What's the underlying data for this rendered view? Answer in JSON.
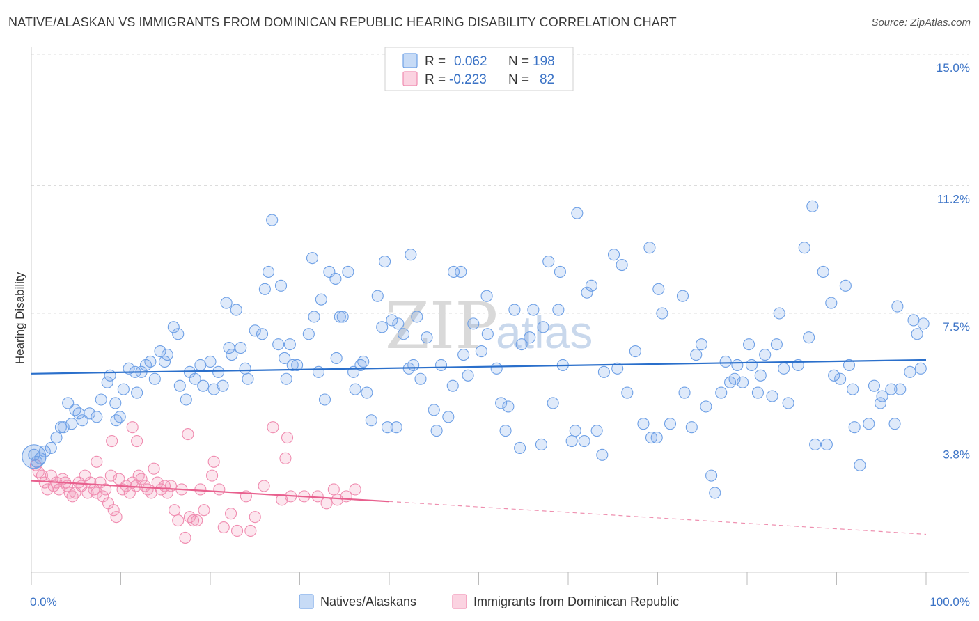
{
  "title": "NATIVE/ALASKAN VS IMMIGRANTS FROM DOMINICAN REPUBLIC HEARING DISABILITY CORRELATION CHART",
  "source": "Source: ZipAtlas.com",
  "watermark": {
    "zip": "ZIP",
    "atlas": "atlas"
  },
  "legend_top": {
    "rows": [
      {
        "r_label": "R =",
        "r_value": "0.062",
        "n_label": "N =",
        "n_value": "198",
        "color": "#6ea0e6"
      },
      {
        "r_label": "R =",
        "r_value": "-0.223",
        "n_label": "N =",
        "n_value": "82",
        "color": "#f08cb0"
      }
    ]
  },
  "chart_data": {
    "type": "scatter",
    "title": "NATIVE/ALASKAN VS IMMIGRANTS FROM DOMINICAN REPUBLIC HEARING DISABILITY CORRELATION CHART",
    "xlabel": "",
    "ylabel": "Hearing Disability",
    "xlim": [
      0,
      100
    ],
    "ylim": [
      0,
      15.0
    ],
    "x_tick_labels": [
      "0.0%",
      "100.0%"
    ],
    "y_ticks": [
      3.8,
      7.5,
      11.2,
      15.0
    ],
    "y_tick_labels": [
      "3.8%",
      "7.5%",
      "11.2%",
      "15.0%"
    ],
    "grid": true,
    "legend_position": "top-center",
    "colors": {
      "blue": "#6ea0e6",
      "blue_line": "#2a6fcb",
      "pink": "#f08cb0",
      "pink_line": "#e8608e"
    },
    "series": [
      {
        "name": "Natives/Alaskans",
        "color": "#6ea0e6",
        "trend": {
          "x": [
            0,
            100
          ],
          "y": [
            5.75,
            6.15
          ]
        },
        "points": [
          [
            0.3,
            3.4
          ],
          [
            0.6,
            3.2
          ],
          [
            1.0,
            3.3
          ],
          [
            1.5,
            3.5
          ],
          [
            2.2,
            3.6
          ],
          [
            2.8,
            3.9
          ],
          [
            3.3,
            4.2
          ],
          [
            3.6,
            4.2
          ],
          [
            4.1,
            4.9
          ],
          [
            4.5,
            4.3
          ],
          [
            4.9,
            4.7
          ],
          [
            5.3,
            4.6
          ],
          [
            5.7,
            4.4
          ],
          [
            6.5,
            4.6
          ],
          [
            7.3,
            4.5
          ],
          [
            7.8,
            5.0
          ],
          [
            8.5,
            5.5
          ],
          [
            8.8,
            5.7
          ],
          [
            9.4,
            4.9
          ],
          [
            9.5,
            4.4
          ],
          [
            9.9,
            4.5
          ],
          [
            10.3,
            5.3
          ],
          [
            10.9,
            5.9
          ],
          [
            11.6,
            5.8
          ],
          [
            11.8,
            5.2
          ],
          [
            12.3,
            5.8
          ],
          [
            12.8,
            6.0
          ],
          [
            13.3,
            6.1
          ],
          [
            13.8,
            5.6
          ],
          [
            14.4,
            6.4
          ],
          [
            14.9,
            6.1
          ],
          [
            15.2,
            6.3
          ],
          [
            15.9,
            7.1
          ],
          [
            16.4,
            6.9
          ],
          [
            16.6,
            5.4
          ],
          [
            17.3,
            5.0
          ],
          [
            17.7,
            5.8
          ],
          [
            18.3,
            5.6
          ],
          [
            18.9,
            6.0
          ],
          [
            19.2,
            5.4
          ],
          [
            20.0,
            6.1
          ],
          [
            20.4,
            5.3
          ],
          [
            20.9,
            5.8
          ],
          [
            21.4,
            5.4
          ],
          [
            21.8,
            7.8
          ],
          [
            22.1,
            6.5
          ],
          [
            22.4,
            6.3
          ],
          [
            22.9,
            7.6
          ],
          [
            23.4,
            6.5
          ],
          [
            23.9,
            5.9
          ],
          [
            24.2,
            5.6
          ],
          [
            25.0,
            7.0
          ],
          [
            25.8,
            6.9
          ],
          [
            26.1,
            8.2
          ],
          [
            26.5,
            8.7
          ],
          [
            26.9,
            10.2
          ],
          [
            27.6,
            6.6
          ],
          [
            27.9,
            8.3
          ],
          [
            28.3,
            6.2
          ],
          [
            28.5,
            5.6
          ],
          [
            28.9,
            6.6
          ],
          [
            29.2,
            6.0
          ],
          [
            29.7,
            6.0
          ],
          [
            31.0,
            6.9
          ],
          [
            31.4,
            9.1
          ],
          [
            31.6,
            7.4
          ],
          [
            32.1,
            5.8
          ],
          [
            32.4,
            7.9
          ],
          [
            32.8,
            5.0
          ],
          [
            33.3,
            8.7
          ],
          [
            34.0,
            8.5
          ],
          [
            34.1,
            6.2
          ],
          [
            34.5,
            7.4
          ],
          [
            34.8,
            7.4
          ],
          [
            35.4,
            8.7
          ],
          [
            36.0,
            5.8
          ],
          [
            36.2,
            5.3
          ],
          [
            36.8,
            6.0
          ],
          [
            37.1,
            6.1
          ],
          [
            37.5,
            5.2
          ],
          [
            38.0,
            4.4
          ],
          [
            38.7,
            8.0
          ],
          [
            39.2,
            7.1
          ],
          [
            39.5,
            9.0
          ],
          [
            39.8,
            4.2
          ],
          [
            40.3,
            7.3
          ],
          [
            40.8,
            4.2
          ],
          [
            41.0,
            7.2
          ],
          [
            41.6,
            6.9
          ],
          [
            42.2,
            5.9
          ],
          [
            42.4,
            9.2
          ],
          [
            42.7,
            6.0
          ],
          [
            43.1,
            7.4
          ],
          [
            43.5,
            5.6
          ],
          [
            44.2,
            6.8
          ],
          [
            45.0,
            4.7
          ],
          [
            45.3,
            4.1
          ],
          [
            45.8,
            6.0
          ],
          [
            46.6,
            4.5
          ],
          [
            47.1,
            5.4
          ],
          [
            47.2,
            8.7
          ],
          [
            48.0,
            8.7
          ],
          [
            48.3,
            6.3
          ],
          [
            48.8,
            5.7
          ],
          [
            49.4,
            7.2
          ],
          [
            50.3,
            6.4
          ],
          [
            50.9,
            8.0
          ],
          [
            51.0,
            6.9
          ],
          [
            52.0,
            5.9
          ],
          [
            52.5,
            4.9
          ],
          [
            53.0,
            4.1
          ],
          [
            53.3,
            4.8
          ],
          [
            54.0,
            7.6
          ],
          [
            54.6,
            3.6
          ],
          [
            54.8,
            6.6
          ],
          [
            55.7,
            6.8
          ],
          [
            56.1,
            7.6
          ],
          [
            57.0,
            3.7
          ],
          [
            57.2,
            7.1
          ],
          [
            57.8,
            9.0
          ],
          [
            58.3,
            4.9
          ],
          [
            58.9,
            7.6
          ],
          [
            59.1,
            8.7
          ],
          [
            59.4,
            6.0
          ],
          [
            60.4,
            3.8
          ],
          [
            60.8,
            4.1
          ],
          [
            61.0,
            10.4
          ],
          [
            61.8,
            3.8
          ],
          [
            62.1,
            8.1
          ],
          [
            62.6,
            8.3
          ],
          [
            63.2,
            4.1
          ],
          [
            63.8,
            3.4
          ],
          [
            64.0,
            5.8
          ],
          [
            65.1,
            9.2
          ],
          [
            65.5,
            5.9
          ],
          [
            66.0,
            8.9
          ],
          [
            66.6,
            5.2
          ],
          [
            67.5,
            6.4
          ],
          [
            68.4,
            4.3
          ],
          [
            69.1,
            9.4
          ],
          [
            69.3,
            3.9
          ],
          [
            69.9,
            3.9
          ],
          [
            70.1,
            8.2
          ],
          [
            70.5,
            7.5
          ],
          [
            71.4,
            4.3
          ],
          [
            72.8,
            8.0
          ],
          [
            73.0,
            5.2
          ],
          [
            73.8,
            4.2
          ],
          [
            74.3,
            6.3
          ],
          [
            74.9,
            6.6
          ],
          [
            75.4,
            4.8
          ],
          [
            76.0,
            2.8
          ],
          [
            76.4,
            2.3
          ],
          [
            77.1,
            5.2
          ],
          [
            77.6,
            6.1
          ],
          [
            78.1,
            5.5
          ],
          [
            78.6,
            5.6
          ],
          [
            78.9,
            6.0
          ],
          [
            79.5,
            5.5
          ],
          [
            80.2,
            6.6
          ],
          [
            80.5,
            6.0
          ],
          [
            81.2,
            5.2
          ],
          [
            81.5,
            5.7
          ],
          [
            82.0,
            6.3
          ],
          [
            82.8,
            5.1
          ],
          [
            83.3,
            6.6
          ],
          [
            83.6,
            7.5
          ],
          [
            84.1,
            5.9
          ],
          [
            84.6,
            4.9
          ],
          [
            85.7,
            6.0
          ],
          [
            86.4,
            9.4
          ],
          [
            86.9,
            6.8
          ],
          [
            87.3,
            10.6
          ],
          [
            87.6,
            3.7
          ],
          [
            88.5,
            8.7
          ],
          [
            88.9,
            3.7
          ],
          [
            89.4,
            7.8
          ],
          [
            89.7,
            5.7
          ],
          [
            90.4,
            5.6
          ],
          [
            91.0,
            8.3
          ],
          [
            91.4,
            6.0
          ],
          [
            91.8,
            5.3
          ],
          [
            92.0,
            4.2
          ],
          [
            92.6,
            3.1
          ],
          [
            93.6,
            4.3
          ],
          [
            94.2,
            5.4
          ],
          [
            94.9,
            4.9
          ],
          [
            95.1,
            5.1
          ],
          [
            96.1,
            5.3
          ],
          [
            96.5,
            4.3
          ],
          [
            96.8,
            7.7
          ],
          [
            97.1,
            5.3
          ],
          [
            98.2,
            5.8
          ],
          [
            98.6,
            7.3
          ],
          [
            99.0,
            6.9
          ],
          [
            99.4,
            5.9
          ],
          [
            99.7,
            7.2
          ]
        ]
      },
      {
        "name": "Immigrants from Dominican Republic",
        "color": "#f08cb0",
        "trend": {
          "x": [
            0,
            40
          ],
          "y": [
            2.65,
            2.05
          ]
        },
        "trend_dashed": {
          "x": [
            40,
            100
          ],
          "y": [
            2.05,
            1.1
          ]
        },
        "points": [
          [
            0.5,
            3.1
          ],
          [
            0.8,
            2.9
          ],
          [
            1.2,
            2.8
          ],
          [
            1.5,
            2.6
          ],
          [
            1.8,
            2.4
          ],
          [
            2.2,
            2.8
          ],
          [
            2.5,
            2.5
          ],
          [
            2.8,
            2.6
          ],
          [
            3.1,
            2.4
          ],
          [
            3.5,
            2.7
          ],
          [
            3.8,
            2.6
          ],
          [
            4.0,
            2.5
          ],
          [
            4.3,
            2.3
          ],
          [
            4.6,
            2.2
          ],
          [
            4.9,
            2.3
          ],
          [
            5.3,
            2.6
          ],
          [
            5.6,
            2.5
          ],
          [
            6.0,
            2.8
          ],
          [
            6.3,
            2.3
          ],
          [
            6.6,
            2.6
          ],
          [
            7.0,
            2.4
          ],
          [
            7.3,
            2.3
          ],
          [
            7.7,
            2.6
          ],
          [
            8.0,
            2.2
          ],
          [
            8.3,
            2.4
          ],
          [
            8.6,
            2.0
          ],
          [
            8.9,
            2.8
          ],
          [
            9.2,
            1.8
          ],
          [
            9.5,
            1.6
          ],
          [
            9.8,
            2.7
          ],
          [
            10.2,
            2.4
          ],
          [
            10.6,
            2.5
          ],
          [
            11.0,
            2.3
          ],
          [
            11.3,
            2.6
          ],
          [
            11.7,
            2.5
          ],
          [
            12.0,
            2.8
          ],
          [
            12.3,
            2.7
          ],
          [
            12.7,
            2.5
          ],
          [
            13.0,
            2.4
          ],
          [
            13.4,
            2.3
          ],
          [
            13.7,
            3.0
          ],
          [
            14.1,
            2.6
          ],
          [
            14.5,
            2.4
          ],
          [
            14.9,
            2.5
          ],
          [
            15.2,
            2.3
          ],
          [
            15.6,
            2.5
          ],
          [
            16.0,
            1.8
          ],
          [
            16.4,
            1.5
          ],
          [
            16.8,
            2.4
          ],
          [
            17.2,
            1.0
          ],
          [
            17.7,
            1.6
          ],
          [
            18.1,
            1.5
          ],
          [
            18.5,
            1.5
          ],
          [
            18.9,
            2.4
          ],
          [
            19.3,
            1.8
          ],
          [
            20.2,
            2.8
          ],
          [
            21.0,
            2.4
          ],
          [
            21.5,
            1.3
          ],
          [
            22.3,
            1.7
          ],
          [
            23.0,
            1.2
          ],
          [
            24.0,
            2.2
          ],
          [
            24.5,
            1.2
          ],
          [
            25.0,
            1.6
          ],
          [
            26.0,
            2.5
          ],
          [
            27.0,
            4.2
          ],
          [
            28.0,
            2.1
          ],
          [
            28.6,
            3.9
          ],
          [
            29.0,
            2.2
          ],
          [
            30.5,
            2.2
          ],
          [
            32.0,
            2.2
          ],
          [
            33.0,
            2.0
          ],
          [
            33.8,
            2.4
          ],
          [
            34.2,
            2.1
          ],
          [
            35.2,
            2.2
          ],
          [
            36.2,
            2.4
          ],
          [
            7.3,
            3.2
          ],
          [
            9.0,
            3.8
          ],
          [
            11.3,
            4.2
          ],
          [
            11.8,
            3.8
          ],
          [
            17.5,
            4.0
          ],
          [
            20.4,
            3.2
          ],
          [
            28.4,
            3.3
          ]
        ]
      }
    ]
  },
  "bottom_legend": [
    {
      "label": "Natives/Alaskans",
      "color": "#6ea0e6"
    },
    {
      "label": "Immigrants from Dominican Republic",
      "color": "#f08cb0"
    }
  ]
}
